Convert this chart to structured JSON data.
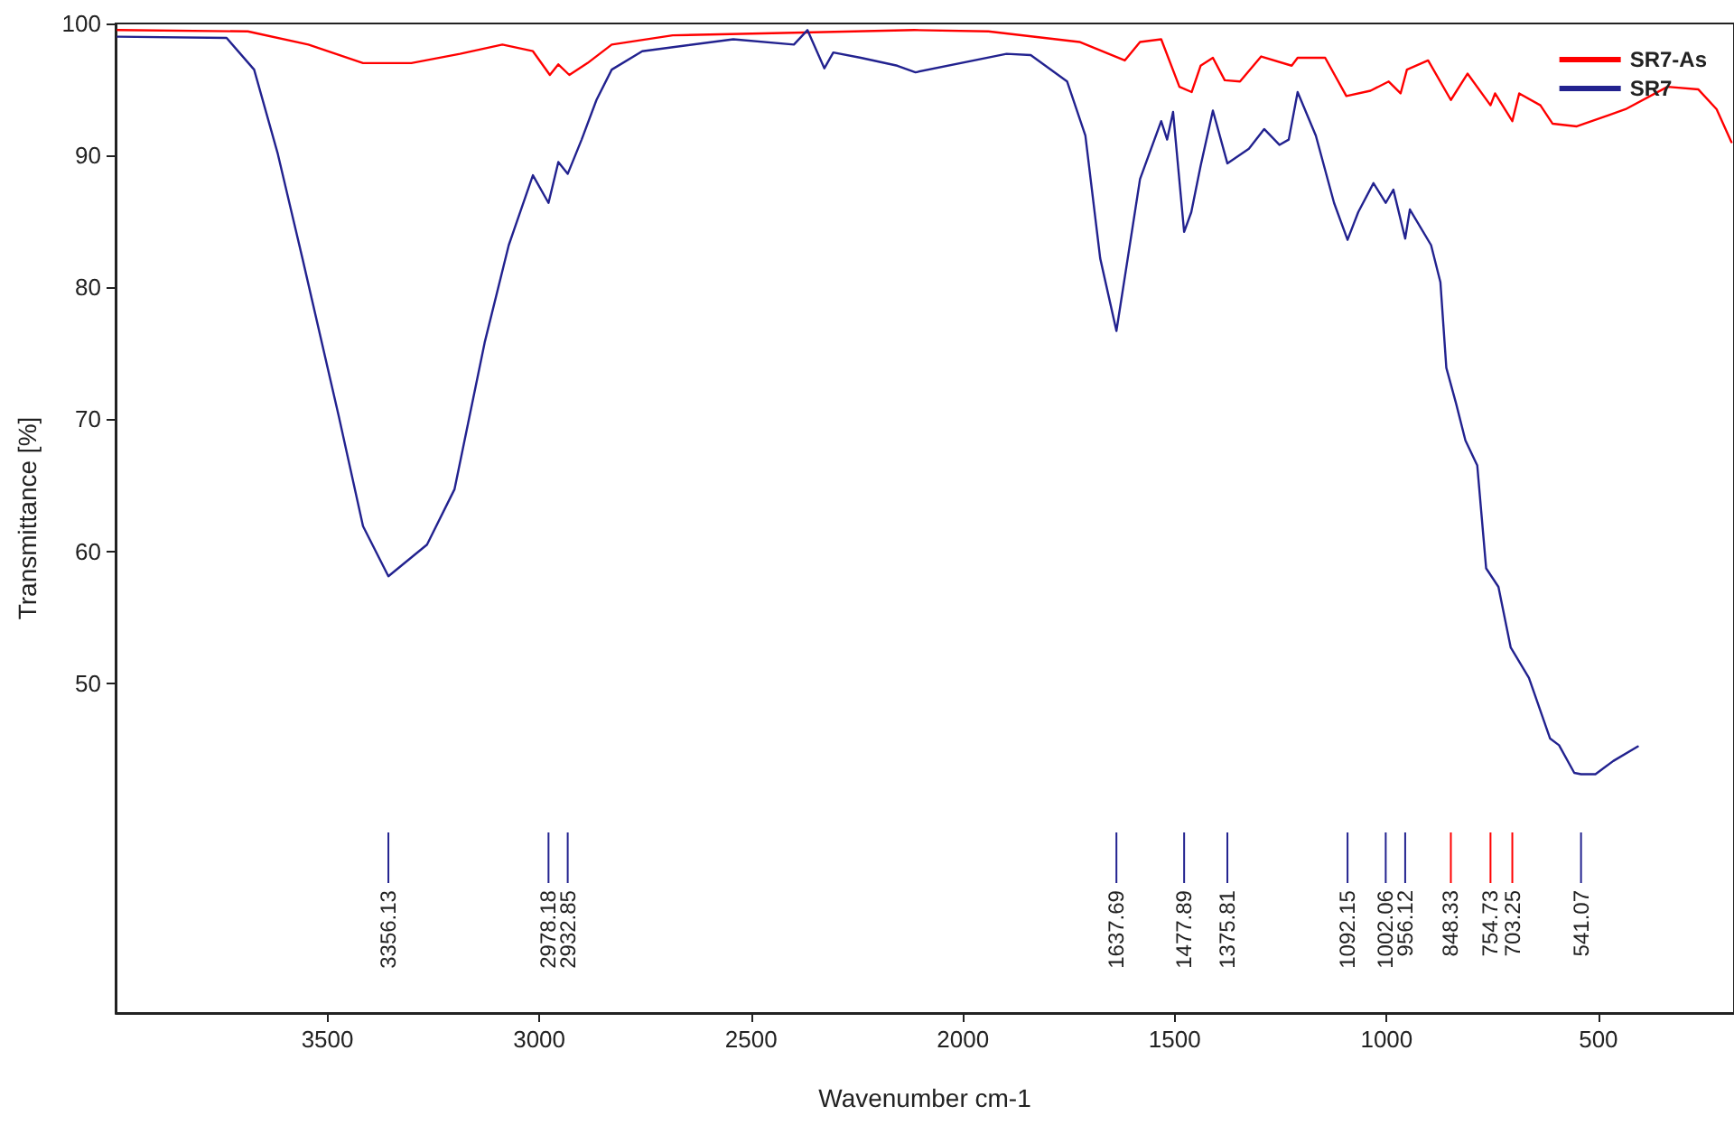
{
  "chart_data": {
    "type": "line",
    "xlabel": "Wavenumber cm-1",
    "ylabel": "Transmittance [%]",
    "xlim": [
      4000,
      180
    ],
    "xticks": [
      3500,
      3000,
      2500,
      2000,
      1500,
      1000,
      500
    ],
    "ylim": [
      25,
      100
    ],
    "yticks": [
      50,
      60,
      70,
      80,
      90,
      100
    ],
    "grid": false,
    "legend": "top right",
    "marker": "none",
    "line_style": "solid",
    "series": [
      {
        "name": "SR7-As",
        "color": "#ff0000",
        "x": [
          3995,
          3688,
          3545,
          3416,
          3302,
          3187,
          3087,
          3015,
          2975,
          2955,
          2929,
          2886,
          2829,
          2685,
          2399,
          2256,
          2115,
          1940,
          1725,
          1618,
          1582,
          1532,
          1489,
          1460,
          1439,
          1410,
          1382,
          1346,
          1296,
          1224,
          1210,
          1145,
          1095,
          1038,
          995,
          967,
          952,
          902,
          848.33,
          809,
          754.73,
          744,
          703.25,
          687,
          637,
          608,
          551,
          436,
          337,
          264,
          221,
          186
        ],
        "values": [
          99.5,
          99.4,
          98.4,
          97.0,
          97.0,
          97.7,
          98.4,
          97.9,
          96.1,
          96.9,
          96.1,
          97.0,
          98.4,
          99.1,
          99.3,
          99.4,
          99.5,
          99.4,
          98.6,
          97.2,
          98.6,
          98.8,
          95.2,
          94.8,
          96.8,
          97.4,
          95.7,
          95.6,
          97.5,
          96.8,
          97.4,
          97.4,
          94.5,
          94.9,
          95.6,
          94.7,
          96.5,
          97.2,
          94.2,
          96.2,
          93.8,
          94.7,
          92.6,
          94.7,
          93.8,
          92.4,
          92.2,
          93.5,
          95.2,
          95.0,
          93.5,
          91.0
        ]
      },
      {
        "name": "SR7",
        "color": "#22228f",
        "x": [
          3995,
          3738,
          3673,
          3617,
          3559,
          3473,
          3416,
          3356.13,
          3265,
          3200,
          3129,
          3072,
          3015,
          2978.18,
          2955,
          2932.85,
          2900,
          2865,
          2829,
          2757,
          2542,
          2399,
          2367,
          2327,
          2306,
          2241,
          2155,
          2112,
          1897,
          1840,
          1754,
          1711,
          1676,
          1637.69,
          1611,
          1582,
          1532,
          1518,
          1504,
          1477.89,
          1461,
          1439,
          1410,
          1375.81,
          1325,
          1289,
          1253,
          1231,
          1210,
          1167,
          1124,
          1092.15,
          1067,
          1031,
          1002.06,
          984,
          956.12,
          945,
          895,
          873,
          859,
          836,
          814,
          786,
          765,
          736,
          707,
          664,
          614,
          593,
          557,
          541.07,
          507,
          465,
          407
        ],
        "values": [
          99.0,
          98.9,
          96.5,
          90.1,
          82.2,
          70.2,
          61.9,
          58.1,
          60.5,
          64.7,
          75.8,
          83.2,
          88.5,
          86.4,
          89.5,
          88.6,
          91.2,
          94.2,
          96.5,
          97.9,
          98.8,
          98.4,
          99.5,
          96.6,
          97.8,
          97.4,
          96.8,
          96.3,
          97.7,
          97.6,
          95.6,
          91.5,
          82.2,
          76.7,
          82.2,
          88.2,
          92.6,
          91.2,
          93.3,
          84.2,
          85.7,
          89.2,
          93.4,
          89.4,
          90.5,
          92.0,
          90.8,
          91.2,
          94.8,
          91.5,
          86.4,
          83.6,
          85.7,
          87.9,
          86.4,
          87.4,
          83.7,
          85.9,
          83.2,
          80.4,
          73.9,
          71.2,
          68.4,
          66.5,
          58.7,
          57.3,
          52.7,
          50.4,
          45.8,
          45.3,
          43.2,
          43.1,
          43.1,
          44.1,
          45.2
        ]
      }
    ],
    "ref_lines": [
      {
        "axis": "x",
        "value": 3356.13,
        "label": "3356.13",
        "color": "#22228f"
      },
      {
        "axis": "x",
        "value": 2978.18,
        "label": "2978.18",
        "color": "#22228f"
      },
      {
        "axis": "x",
        "value": 2932.85,
        "label": "2932.85",
        "color": "#22228f"
      },
      {
        "axis": "x",
        "value": 1637.69,
        "label": "1637.69",
        "color": "#22228f"
      },
      {
        "axis": "x",
        "value": 1477.89,
        "label": "1477.89",
        "color": "#22228f"
      },
      {
        "axis": "x",
        "value": 1375.81,
        "label": "1375.81",
        "color": "#22228f"
      },
      {
        "axis": "x",
        "value": 1092.15,
        "label": "1092.15",
        "color": "#22228f"
      },
      {
        "axis": "x",
        "value": 1002.06,
        "label": "1002.06",
        "color": "#22228f"
      },
      {
        "axis": "x",
        "value": 956.12,
        "label": "956.12",
        "color": "#22228f"
      },
      {
        "axis": "x",
        "value": 848.33,
        "label": "848.33",
        "color": "#ff0000"
      },
      {
        "axis": "x",
        "value": 754.73,
        "label": "754.73",
        "color": "#ff0000"
      },
      {
        "axis": "x",
        "value": 703.25,
        "label": "703.25",
        "color": "#ff0000"
      },
      {
        "axis": "x",
        "value": 541.07,
        "label": "541.07",
        "color": "#22228f"
      }
    ]
  }
}
